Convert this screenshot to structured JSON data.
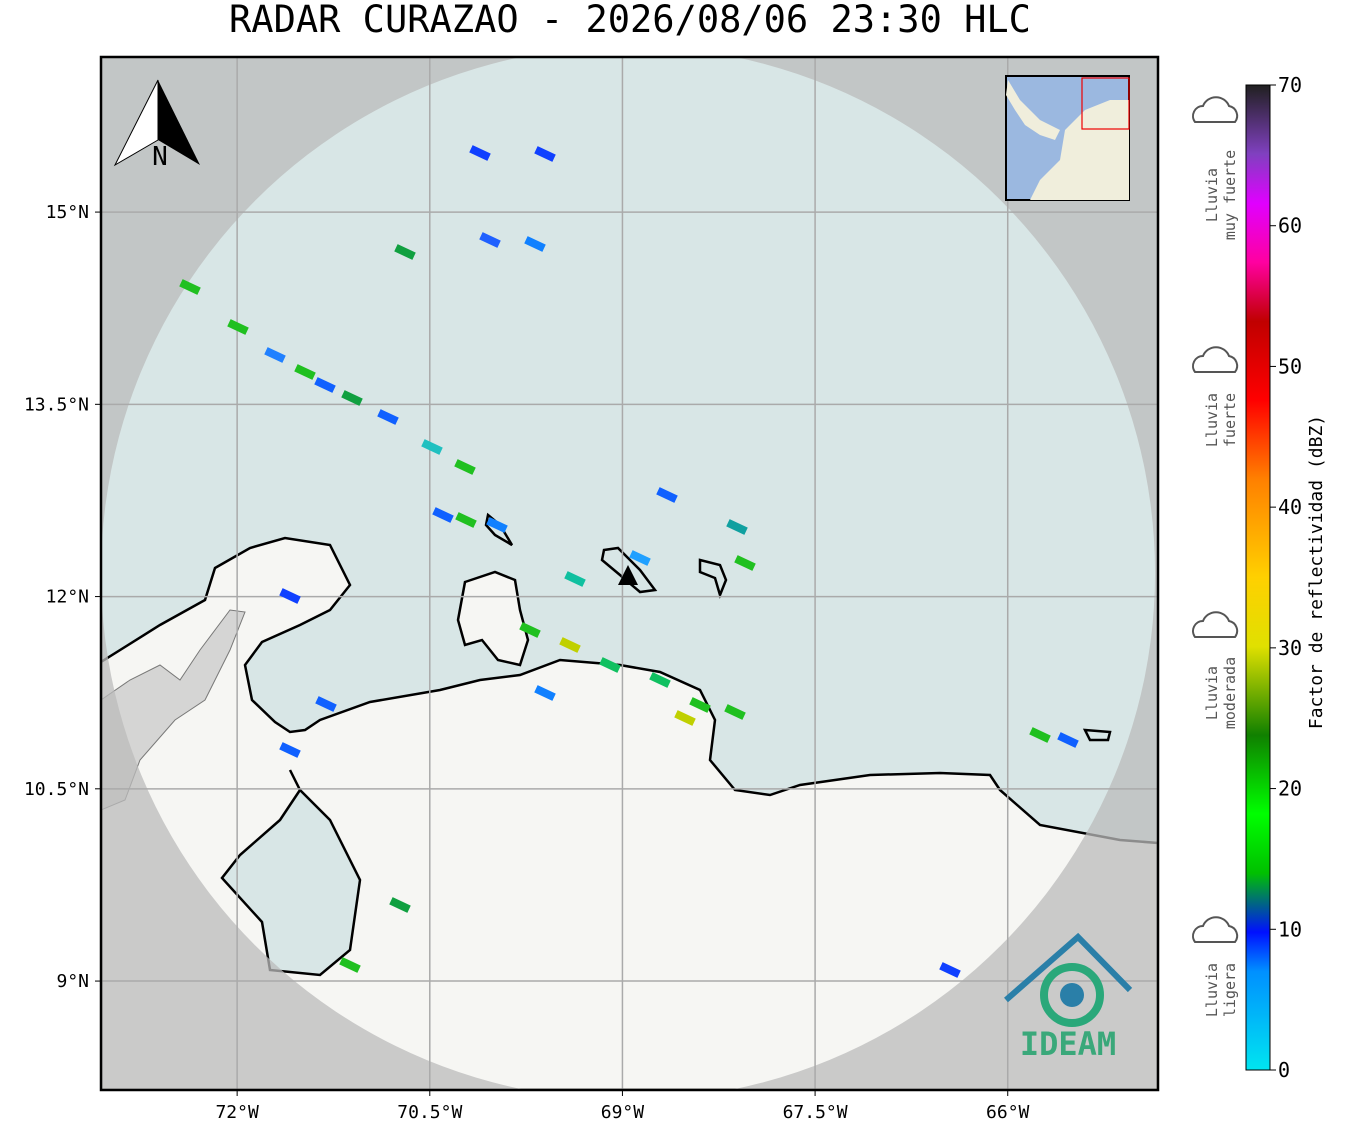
{
  "title": "RADAR CURAZAO - 2026/08/06 23:30 HLC",
  "north_label": "N",
  "map": {
    "xlim": [
      -73.06,
      -64.83
    ],
    "ylim": [
      8.15,
      16.21
    ],
    "xticks": [
      {
        "value": -72,
        "label": "72°W"
      },
      {
        "value": -70.5,
        "label": "70.5°W"
      },
      {
        "value": -69,
        "label": "69°W"
      },
      {
        "value": -67.5,
        "label": "67.5°W"
      },
      {
        "value": -66,
        "label": "66°W"
      }
    ],
    "yticks": [
      {
        "value": 15,
        "label": "15°N"
      },
      {
        "value": 13.5,
        "label": "13.5°N"
      },
      {
        "value": 12,
        "label": "12°N"
      },
      {
        "value": 10.5,
        "label": "10.5°N"
      },
      {
        "value": 9,
        "label": "9°N"
      }
    ],
    "grid": true
  },
  "colorbar": {
    "label": "Factor de reflectividad (dBZ)",
    "lim": [
      0,
      70
    ],
    "ticks": [
      0,
      10,
      20,
      30,
      40,
      50,
      60,
      70
    ]
  },
  "legend": [
    {
      "lines": [
        "Lluvia",
        "muy fuerte"
      ]
    },
    {
      "lines": [
        "Lluvia",
        "fuerte"
      ]
    },
    {
      "lines": [
        "Lluvia",
        "moderada"
      ]
    },
    {
      "lines": [
        "Lluvia",
        "ligera"
      ]
    }
  ],
  "logo": "IDEAM"
}
